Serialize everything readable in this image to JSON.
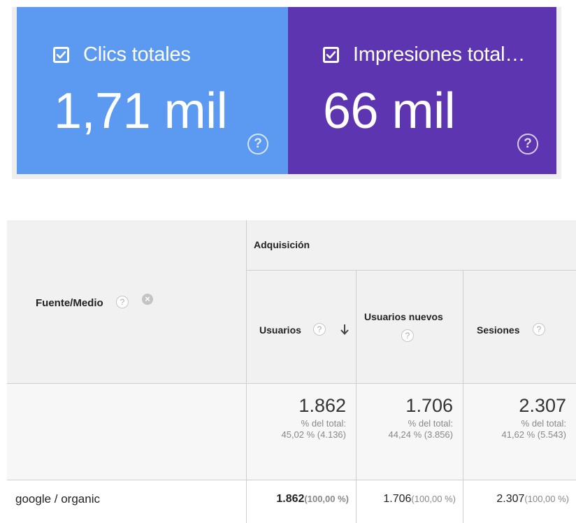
{
  "scorecards": [
    {
      "label": "Clics totales",
      "value": "1,71 mil",
      "checked": true,
      "help": "?",
      "color": "#5c9af2"
    },
    {
      "label": "Impresiones total…",
      "value": "66 mil",
      "checked": true,
      "help": "?",
      "color": "#5e35b1"
    }
  ],
  "table": {
    "group_header": "Adquisición",
    "dimension_header": "Fuente/Medio",
    "columns": [
      {
        "label": "Usuarios",
        "sorted": "desc"
      },
      {
        "label": "Usuarios nuevos"
      },
      {
        "label": "Sesiones"
      }
    ],
    "totals": [
      {
        "value": "1.862",
        "sub1": "% del total:",
        "sub2": "45,02 % (4.136)"
      },
      {
        "value": "1.706",
        "sub1": "% del total:",
        "sub2": "44,24 % (3.856)"
      },
      {
        "value": "2.307",
        "sub1": "% del total:",
        "sub2": "41,62 % (5.543)"
      }
    ],
    "rows": [
      {
        "label": "google / organic",
        "cells": [
          {
            "num": "1.862",
            "pct": "(100,00 %)"
          },
          {
            "num": "1.706",
            "pct": "(100,00 %)"
          },
          {
            "num": "2.307",
            "pct": "(100,00 %)"
          }
        ]
      }
    ]
  }
}
